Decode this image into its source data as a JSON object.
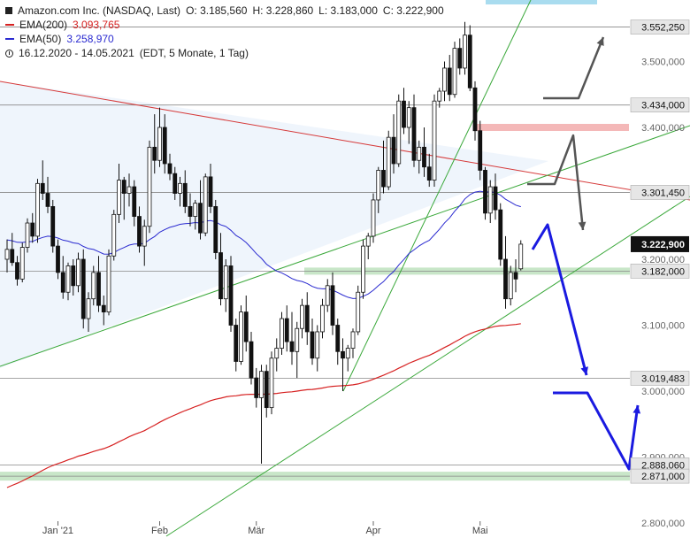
{
  "legend": {
    "title": "Amazon.com Inc. (NASDAQ, Last)",
    "open": "O: 3.185,560",
    "high": "H: 3.228,860",
    "low": "L: 3.183,000",
    "close": "C: 3.222,900",
    "ema200_label": "EMA(200)",
    "ema200_value": "3.093,765",
    "ema50_label": "EMA(50)",
    "ema50_value": "3.258,970",
    "range": "16.12.2020 - 14.05.2021",
    "settings": "(EDT, 5 Monate, 1 Tag)"
  },
  "colors": {
    "ema200": "#d62020",
    "ema50": "#2a2ad0",
    "trendline_green": "#3aa83a",
    "trendline_red": "#d63a3a",
    "arrow_blue": "#1a1ae0",
    "arrow_gray": "#555555",
    "price_badge": "#111111"
  },
  "chart_data": {
    "type": "candlestick",
    "ylim": [
      2800,
      3590
    ],
    "y_ticks": [
      {
        "value": 2800,
        "label": "2.800,000"
      },
      {
        "value": 2900,
        "label": "2.900,000"
      },
      {
        "value": 3000,
        "label": "3.000,000"
      },
      {
        "value": 3100,
        "label": "3.100,000"
      },
      {
        "value": 3200,
        "label": "3.200,000"
      },
      {
        "value": 3300,
        "label": "3.300,000"
      },
      {
        "value": 3400,
        "label": "3.400,000"
      },
      {
        "value": 3500,
        "label": "3.500,000"
      }
    ],
    "x_ticks": [
      {
        "label": "Jan '21",
        "index": 10
      },
      {
        "label": "Feb",
        "index": 30
      },
      {
        "label": "Mär",
        "index": 49
      },
      {
        "label": "Apr",
        "index": 72
      },
      {
        "label": "Mai",
        "index": 93
      }
    ],
    "levels": [
      {
        "value": 3552.25,
        "label": "3.552,250"
      },
      {
        "value": 3434.0,
        "label": "3.434,000"
      },
      {
        "value": 3301.45,
        "label": "3.301,450"
      },
      {
        "value": 3182.0,
        "label": "3.182,000"
      },
      {
        "value": 3019.483,
        "label": "3.019,483"
      },
      {
        "value": 2888.06,
        "label": "2.888,060"
      },
      {
        "value": 2871.0,
        "label": "2.871,000"
      }
    ],
    "last_price": {
      "value": 3222.9,
      "label": "3.222,900"
    },
    "candles": [
      [
        3200,
        3230,
        3180,
        3215
      ],
      [
        3215,
        3240,
        3190,
        3195
      ],
      [
        3195,
        3205,
        3160,
        3170
      ],
      [
        3170,
        3225,
        3165,
        3218
      ],
      [
        3218,
        3262,
        3210,
        3255
      ],
      [
        3255,
        3270,
        3225,
        3235
      ],
      [
        3235,
        3322,
        3225,
        3315
      ],
      [
        3315,
        3350,
        3290,
        3300
      ],
      [
        3300,
        3325,
        3270,
        3280
      ],
      [
        3280,
        3290,
        3210,
        3220
      ],
      [
        3220,
        3230,
        3170,
        3180
      ],
      [
        3180,
        3205,
        3140,
        3150
      ],
      [
        3150,
        3195,
        3138,
        3190
      ],
      [
        3190,
        3200,
        3145,
        3160
      ],
      [
        3160,
        3210,
        3150,
        3200
      ],
      [
        3200,
        3215,
        3095,
        3110
      ],
      [
        3110,
        3150,
        3090,
        3140
      ],
      [
        3140,
        3190,
        3130,
        3180
      ],
      [
        3180,
        3205,
        3120,
        3130
      ],
      [
        3130,
        3145,
        3100,
        3120
      ],
      [
        3120,
        3215,
        3115,
        3205
      ],
      [
        3205,
        3275,
        3198,
        3268
      ],
      [
        3268,
        3345,
        3255,
        3320
      ],
      [
        3320,
        3325,
        3260,
        3300
      ],
      [
        3300,
        3330,
        3280,
        3310
      ],
      [
        3310,
        3320,
        3250,
        3265
      ],
      [
        3265,
        3280,
        3210,
        3220
      ],
      [
        3220,
        3260,
        3190,
        3250
      ],
      [
        3250,
        3380,
        3240,
        3370
      ],
      [
        3370,
        3420,
        3330,
        3350
      ],
      [
        3350,
        3430,
        3340,
        3400
      ],
      [
        3400,
        3420,
        3330,
        3345
      ],
      [
        3345,
        3360,
        3320,
        3330
      ],
      [
        3330,
        3340,
        3290,
        3300
      ],
      [
        3300,
        3325,
        3280,
        3315
      ],
      [
        3315,
        3335,
        3270,
        3280
      ],
      [
        3280,
        3300,
        3250,
        3265
      ],
      [
        3265,
        3290,
        3245,
        3285
      ],
      [
        3285,
        3320,
        3230,
        3240
      ],
      [
        3240,
        3330,
        3235,
        3325
      ],
      [
        3325,
        3345,
        3270,
        3280
      ],
      [
        3280,
        3290,
        3200,
        3210
      ],
      [
        3210,
        3240,
        3130,
        3140
      ],
      [
        3140,
        3200,
        3120,
        3190
      ],
      [
        3190,
        3205,
        3090,
        3100
      ],
      [
        3100,
        3110,
        3030,
        3045
      ],
      [
        3045,
        3130,
        3040,
        3120
      ],
      [
        3120,
        3145,
        3060,
        3075
      ],
      [
        3075,
        3090,
        3010,
        3020
      ],
      [
        3020,
        3035,
        2975,
        2990
      ],
      [
        2990,
        3040,
        2890,
        3030
      ],
      [
        3030,
        3040,
        2960,
        2975
      ],
      [
        2975,
        3060,
        2965,
        3050
      ],
      [
        3050,
        3080,
        3030,
        3065
      ],
      [
        3065,
        3120,
        3055,
        3110
      ],
      [
        3110,
        3130,
        3060,
        3075
      ],
      [
        3075,
        3120,
        3040,
        3060
      ],
      [
        3060,
        3105,
        3020,
        3095
      ],
      [
        3095,
        3140,
        3080,
        3130
      ],
      [
        3130,
        3150,
        3070,
        3090
      ],
      [
        3090,
        3110,
        3040,
        3050
      ],
      [
        3050,
        3100,
        3030,
        3090
      ],
      [
        3090,
        3140,
        3080,
        3130
      ],
      [
        3130,
        3170,
        3120,
        3160
      ],
      [
        3160,
        3180,
        3085,
        3100
      ],
      [
        3100,
        3110,
        3040,
        3060
      ],
      [
        3060,
        3080,
        3000,
        3050
      ],
      [
        3050,
        3070,
        3030,
        3065
      ],
      [
        3065,
        3095,
        3050,
        3090
      ],
      [
        3090,
        3160,
        3085,
        3150
      ],
      [
        3150,
        3230,
        3140,
        3220
      ],
      [
        3220,
        3240,
        3200,
        3235
      ],
      [
        3235,
        3300,
        3225,
        3290
      ],
      [
        3290,
        3340,
        3270,
        3335
      ],
      [
        3335,
        3380,
        3300,
        3310
      ],
      [
        3310,
        3395,
        3305,
        3385
      ],
      [
        3385,
        3420,
        3330,
        3345
      ],
      [
        3345,
        3450,
        3340,
        3440
      ],
      [
        3440,
        3460,
        3390,
        3400
      ],
      [
        3400,
        3440,
        3375,
        3430
      ],
      [
        3430,
        3450,
        3340,
        3350
      ],
      [
        3350,
        3380,
        3330,
        3370
      ],
      [
        3370,
        3400,
        3325,
        3340
      ],
      [
        3340,
        3360,
        3310,
        3320
      ],
      [
        3320,
        3450,
        3310,
        3440
      ],
      [
        3440,
        3460,
        3430,
        3455
      ],
      [
        3455,
        3500,
        3440,
        3490
      ],
      [
        3490,
        3510,
        3440,
        3450
      ],
      [
        3450,
        3530,
        3445,
        3520
      ],
      [
        3520,
        3535,
        3480,
        3490
      ],
      [
        3490,
        3560,
        3480,
        3540
      ],
      [
        3540,
        3555,
        3455,
        3460
      ],
      [
        3460,
        3470,
        3380,
        3395
      ],
      [
        3395,
        3410,
        3320,
        3335
      ],
      [
        3335,
        3340,
        3260,
        3270
      ],
      [
        3270,
        3320,
        3255,
        3310
      ],
      [
        3310,
        3330,
        3260,
        3275
      ],
      [
        3275,
        3285,
        3190,
        3200
      ],
      [
        3200,
        3235,
        3125,
        3140
      ],
      [
        3140,
        3190,
        3130,
        3180
      ],
      [
        3180,
        3200,
        3150,
        3170
      ],
      [
        3185.56,
        3228.86,
        3183.0,
        3222.9
      ]
    ]
  }
}
